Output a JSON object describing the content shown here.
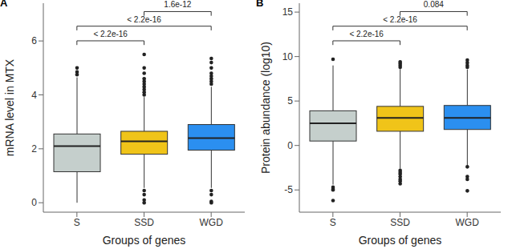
{
  "chart_data": [
    {
      "type": "box",
      "panel": "A",
      "y_label": "mRNA level in MTX",
      "x_label": "Groups of genes",
      "categories": [
        "S",
        "SSD",
        "WGD"
      ],
      "colors": [
        "#c5cfcc",
        "#f0c419",
        "#2b8ff0"
      ],
      "ylim": [
        -0.35,
        7.4
      ],
      "yticks": [
        0,
        2,
        4,
        6
      ],
      "grid": false,
      "boxes": [
        {
          "whisker_low": 0,
          "q1": 1.15,
          "median": 2.1,
          "q3": 2.55,
          "whisker_high": 4.65,
          "outliers": [
            4.75,
            4.85,
            5.0
          ]
        },
        {
          "whisker_low": 0.55,
          "q1": 1.8,
          "median": 2.28,
          "q3": 2.65,
          "whisker_high": 3.92,
          "outliers": [
            0.45,
            0.3,
            0.1,
            0.0,
            4.0,
            4.1,
            4.2,
            4.3,
            4.4,
            4.5,
            4.6,
            4.8,
            5.0,
            5.5
          ]
        },
        {
          "whisker_low": 0.55,
          "q1": 1.95,
          "median": 2.4,
          "q3": 2.9,
          "whisker_high": 4.3,
          "outliers": [
            0.45,
            0.3,
            0.05,
            0.0,
            4.4,
            4.5,
            4.6,
            4.7,
            4.8,
            5.0,
            5.2,
            5.35
          ]
        }
      ],
      "comparisons": [
        {
          "groups": [
            "S",
            "SSD"
          ],
          "label": "< 2.2e-16"
        },
        {
          "groups": [
            "S",
            "WGD"
          ],
          "label": "< 2.2e-16"
        },
        {
          "groups": [
            "SSD",
            "WGD"
          ],
          "label": "1.6e-12"
        }
      ]
    },
    {
      "type": "box",
      "panel": "B",
      "y_label": "Protein abundance (log10)",
      "x_label": "Groups of genes",
      "categories": [
        "S",
        "SSD",
        "WGD"
      ],
      "colors": [
        "#c5cfcc",
        "#f0c419",
        "#2b8ff0"
      ],
      "ylim": [
        -7.5,
        16
      ],
      "yticks": [
        -5,
        0,
        5,
        10,
        15
      ],
      "grid": false,
      "boxes": [
        {
          "whisker_low": -4.4,
          "q1": 0.5,
          "median": 2.5,
          "q3": 3.9,
          "whisker_high": 9.0,
          "outliers": [
            -4.7,
            -4.9,
            -5.0,
            -6.2,
            9.7
          ]
        },
        {
          "whisker_low": -2.6,
          "q1": 1.6,
          "median": 3.1,
          "q3": 4.4,
          "whisker_high": 8.6,
          "outliers": [
            -2.8,
            -3.0,
            -3.2,
            -3.5,
            -3.8,
            -4.0,
            -4.3,
            8.8,
            9.0,
            9.2,
            9.4
          ]
        },
        {
          "whisker_low": -2.25,
          "q1": 1.8,
          "median": 3.1,
          "q3": 4.5,
          "whisker_high": 8.55,
          "outliers": [
            -2.4,
            -3.5,
            -3.8,
            -5.1,
            8.8,
            9.0,
            9.3,
            9.6
          ]
        }
      ],
      "comparisons": [
        {
          "groups": [
            "S",
            "SSD"
          ],
          "label": "< 2.2e-16"
        },
        {
          "groups": [
            "S",
            "WGD"
          ],
          "label": "< 2.2e-16"
        },
        {
          "groups": [
            "SSD",
            "WGD"
          ],
          "label": "0.084"
        }
      ]
    }
  ]
}
